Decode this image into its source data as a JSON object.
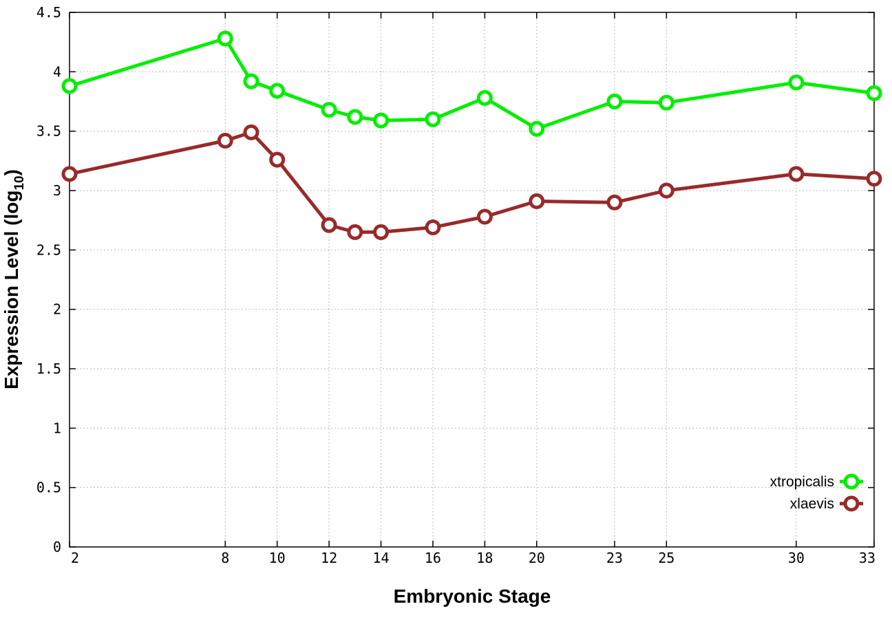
{
  "chart_data": {
    "type": "line",
    "xlabel": "Embryonic Stage",
    "ylabel_main": "Expression Level (log",
    "ylabel_sub": "10",
    "ylabel_close": ")",
    "xlim": [
      2,
      33
    ],
    "ylim": [
      0,
      4.5
    ],
    "grid": true,
    "legend_position": "bottom-right",
    "x_ticks": [
      2,
      8,
      10,
      12,
      14,
      16,
      18,
      20,
      23,
      25,
      30,
      33
    ],
    "x_tick_labels": [
      "2",
      "8",
      "10",
      "12",
      "14",
      "16",
      "18",
      "20",
      "23",
      "25",
      "30",
      "33"
    ],
    "y_ticks": [
      0,
      0.5,
      1,
      1.5,
      2,
      2.5,
      3,
      3.5,
      4,
      4.5
    ],
    "y_tick_labels": [
      "0",
      "0.5",
      "1",
      "1.5",
      "2",
      "2.5",
      "3",
      "3.5",
      "4",
      "4.5"
    ],
    "x": [
      2,
      8,
      9,
      10,
      12,
      13,
      14,
      16,
      18,
      20,
      23,
      25,
      30,
      33
    ],
    "series": [
      {
        "name": "xtropicalis",
        "color": "#00ee00",
        "values": [
          3.88,
          4.28,
          3.92,
          3.84,
          3.68,
          3.62,
          3.59,
          3.6,
          3.78,
          3.52,
          3.75,
          3.74,
          3.91,
          3.82
        ]
      },
      {
        "name": "xlaevis",
        "color": "#992a2a",
        "values": [
          3.14,
          3.42,
          3.49,
          3.26,
          2.71,
          2.65,
          2.65,
          2.69,
          2.78,
          2.91,
          2.9,
          3.0,
          3.14,
          3.1
        ]
      }
    ]
  }
}
